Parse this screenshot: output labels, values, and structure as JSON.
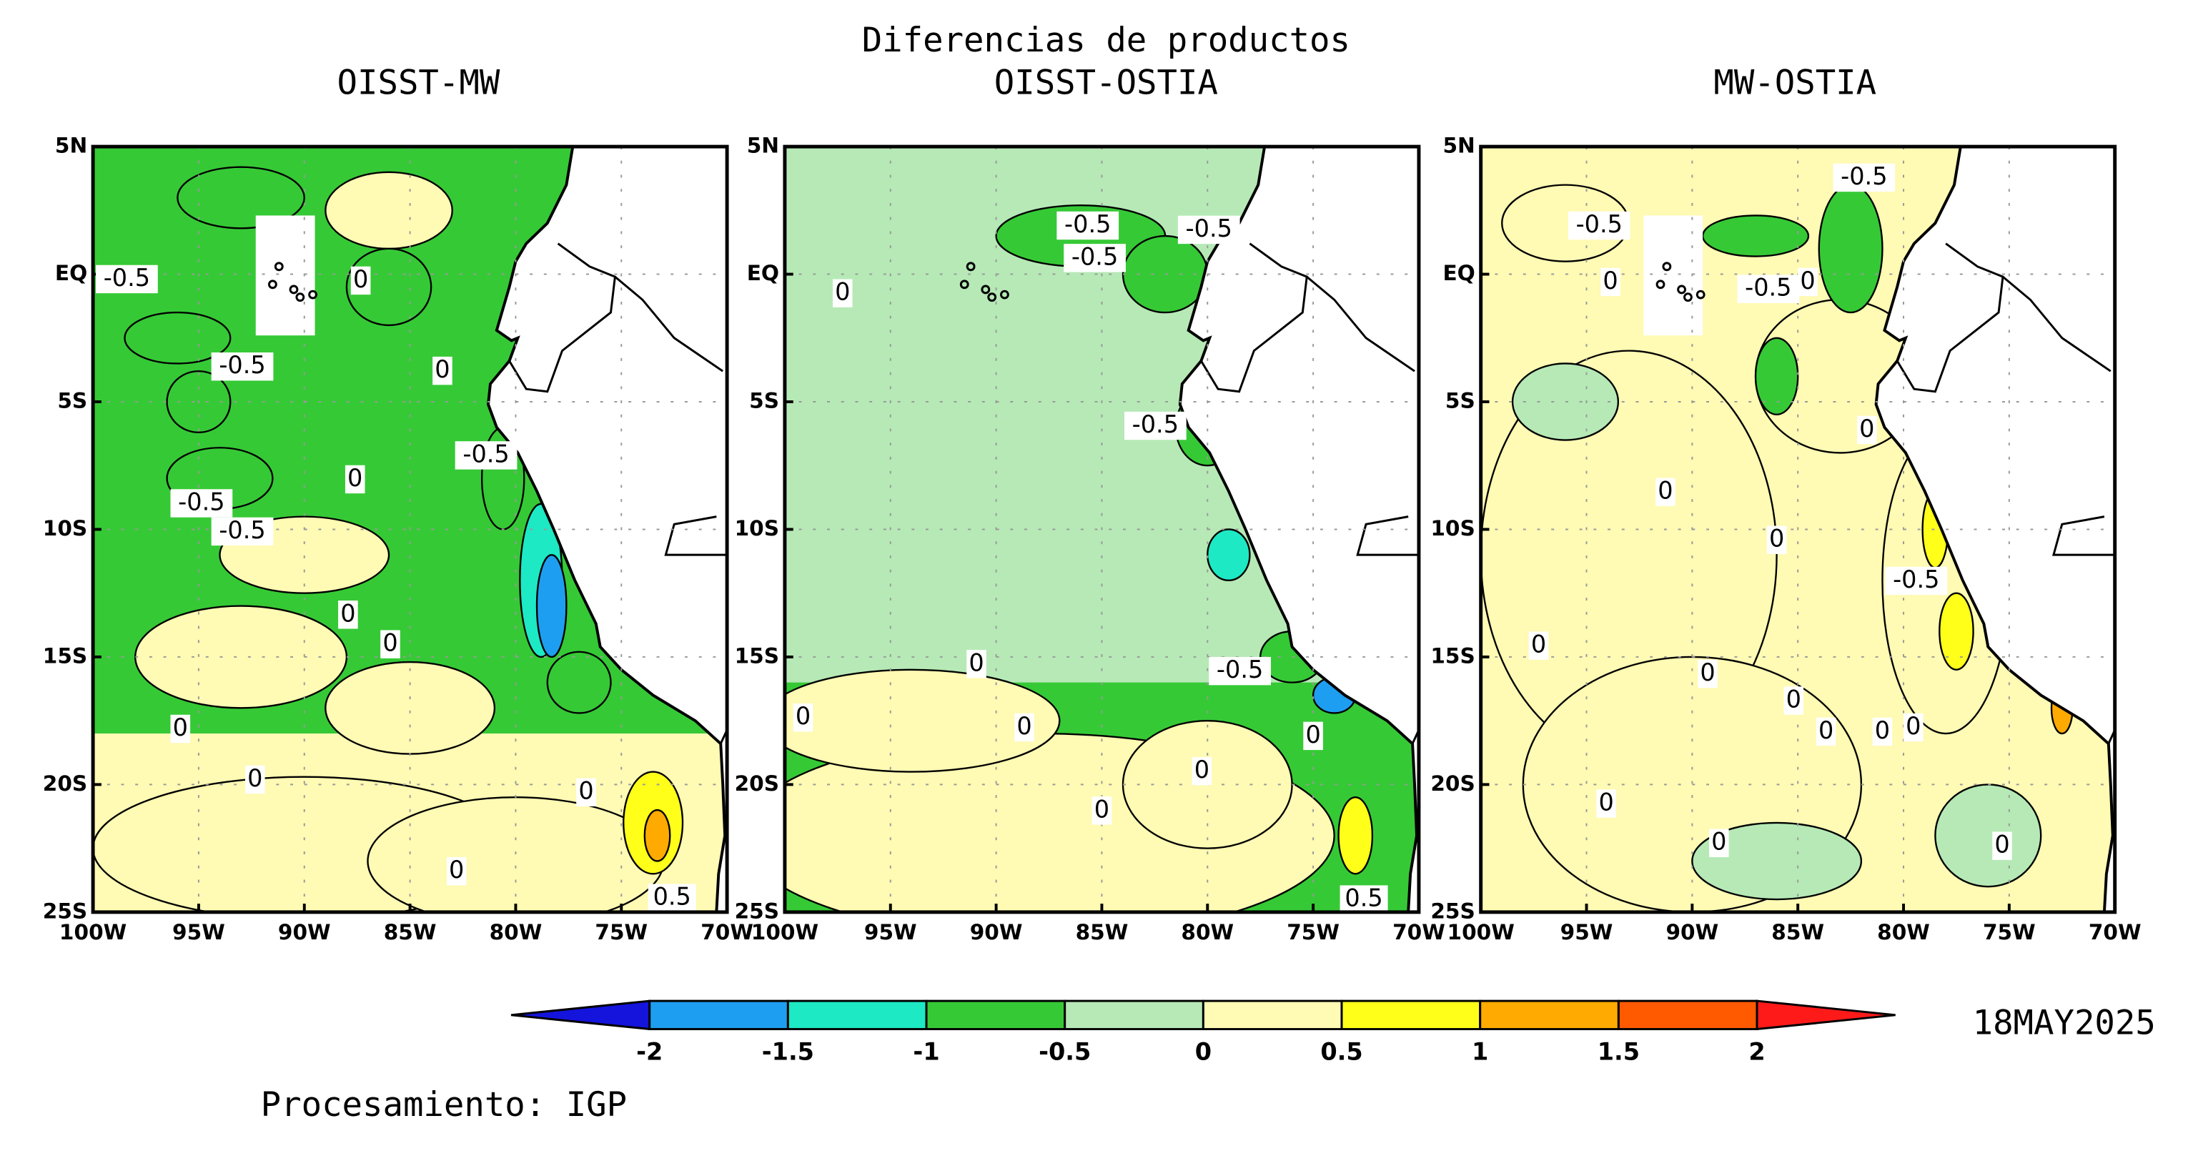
{
  "title": "Diferencias de productos",
  "panels": [
    {
      "title": "OISST-MW",
      "contour_labels": [
        -0.5,
        -0.5,
        0,
        -0.5,
        0,
        -0.5,
        -0.5,
        0,
        0,
        0,
        0,
        0,
        0,
        0.5,
        0
      ]
    },
    {
      "title": "OISST-OSTIA",
      "contour_labels": [
        -0.5,
        -0.5,
        -0.5,
        0,
        -0.5,
        0,
        -0.5,
        0,
        0,
        0,
        0,
        0,
        0.5
      ]
    },
    {
      "title": "MW-OSTIA",
      "contour_labels": [
        -0.5,
        -0.5,
        0,
        -0.5,
        0,
        0,
        0,
        0,
        -0.5,
        0,
        0,
        0,
        0,
        0,
        0,
        0,
        0,
        0
      ]
    }
  ],
  "lon_ticks": [
    {
      "value": -100,
      "label": "100W"
    },
    {
      "value": -95,
      "label": "95W"
    },
    {
      "value": -90,
      "label": "90W"
    },
    {
      "value": -85,
      "label": "85W"
    },
    {
      "value": -80,
      "label": "80W"
    },
    {
      "value": -75,
      "label": "75W"
    },
    {
      "value": -70,
      "label": "70W"
    }
  ],
  "lat_ticks": [
    {
      "value": 5,
      "label": "5N"
    },
    {
      "value": 0,
      "label": "EQ"
    },
    {
      "value": -5,
      "label": "5S"
    },
    {
      "value": -10,
      "label": "10S"
    },
    {
      "value": -15,
      "label": "15S"
    },
    {
      "value": -20,
      "label": "20S"
    },
    {
      "value": -25,
      "label": "25S"
    }
  ],
  "colorbar": {
    "levels": [
      -2,
      -1.5,
      -1,
      -0.5,
      0,
      0.5,
      1,
      1.5,
      2
    ],
    "colors": [
      "#1414dc",
      "#1e9ef0",
      "#1de9c4",
      "#36c936",
      "#b6e9b6",
      "#fffab4",
      "#ffff1a",
      "#ffaa00",
      "#ff5a00",
      "#ff1a1a"
    ]
  },
  "date": "18MAY2025",
  "credit": "Procesamiento: IGP"
}
